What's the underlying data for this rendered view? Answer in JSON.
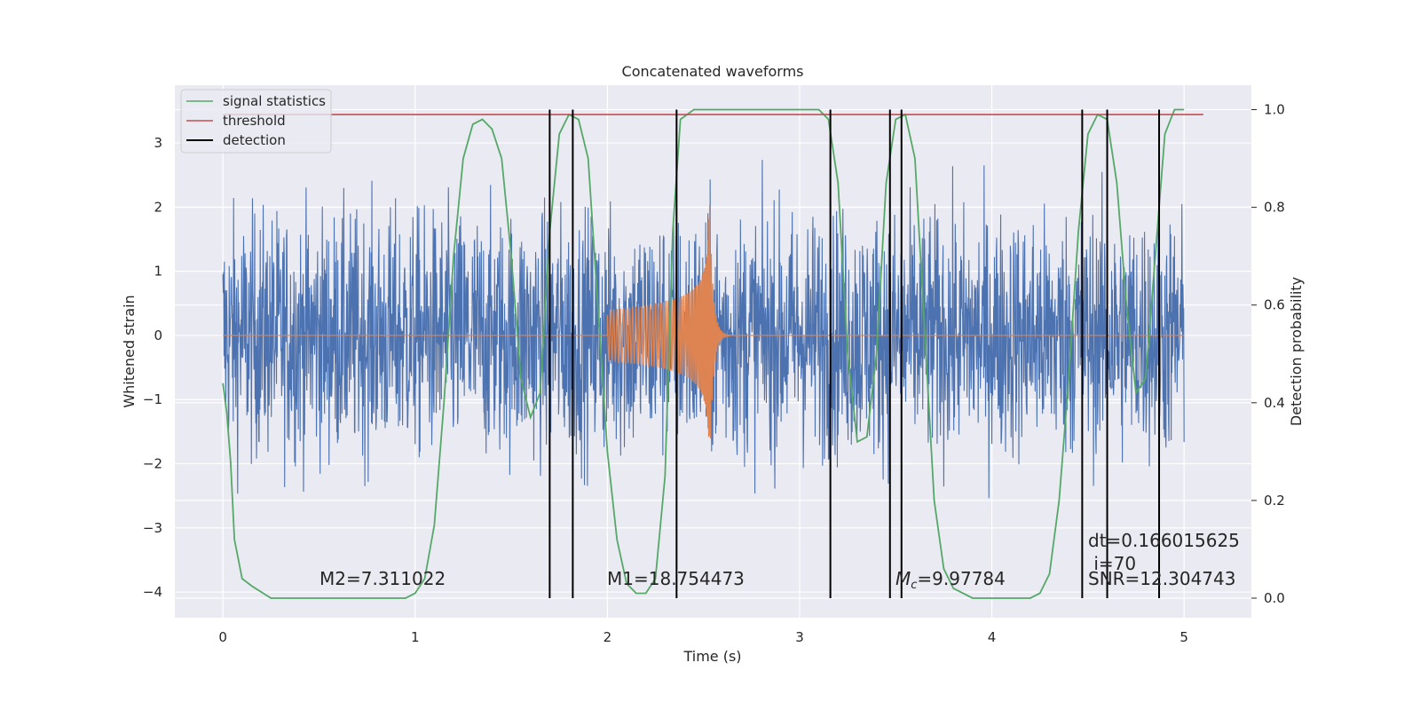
{
  "chart_data": {
    "type": "line",
    "title": "Concatenated waveforms",
    "xlabel": "Time (s)",
    "ylabel": "Whitened strain",
    "y2label": "Detection probability",
    "xlim": [
      -0.25,
      5.35
    ],
    "ylim": [
      -4.4,
      3.9
    ],
    "y2lim": [
      -0.04,
      1.05
    ],
    "xticks": [
      0,
      1,
      2,
      3,
      4,
      5
    ],
    "yticks": [
      -4,
      -3,
      -2,
      -1,
      0,
      1,
      2,
      3
    ],
    "y2ticks": [
      0.0,
      0.2,
      0.4,
      0.6,
      0.8,
      1.0
    ],
    "grid": true,
    "legend_position": "top-left",
    "colors": {
      "noise": "#4c72b0",
      "template": "#dd8452",
      "signal_statistics": "#55a868",
      "threshold": "#c44e52",
      "detection": "#000000",
      "axes_bg": "#eaeaf2",
      "grid": "#ffffff"
    },
    "series": [
      {
        "name": "signal statistics",
        "axis": "right",
        "x": [
          0.0,
          0.02,
          0.04,
          0.06,
          0.1,
          0.15,
          0.25,
          0.5,
          0.8,
          0.95,
          1.0,
          1.05,
          1.1,
          1.15,
          1.2,
          1.25,
          1.3,
          1.35,
          1.4,
          1.45,
          1.5,
          1.55,
          1.6,
          1.65,
          1.7,
          1.75,
          1.8,
          1.85,
          1.9,
          1.95,
          2.0,
          2.05,
          2.1,
          2.15,
          2.2,
          2.25,
          2.3,
          2.34,
          2.38,
          2.45,
          3.1,
          3.15,
          3.2,
          3.25,
          3.3,
          3.35,
          3.4,
          3.45,
          3.5,
          3.55,
          3.6,
          3.65,
          3.7,
          3.75,
          3.8,
          3.85,
          3.9,
          3.95,
          4.2,
          4.25,
          4.3,
          4.35,
          4.4,
          4.45,
          4.5,
          4.55,
          4.6,
          4.65,
          4.7,
          4.75,
          4.8,
          4.85,
          4.9,
          4.95,
          5.0
        ],
        "values": [
          0.44,
          0.38,
          0.28,
          0.12,
          0.04,
          0.025,
          0.0,
          0.0,
          0.0,
          0.0,
          0.01,
          0.04,
          0.15,
          0.4,
          0.7,
          0.9,
          0.97,
          0.98,
          0.96,
          0.9,
          0.7,
          0.45,
          0.37,
          0.42,
          0.75,
          0.95,
          0.99,
          0.98,
          0.9,
          0.6,
          0.3,
          0.12,
          0.03,
          0.01,
          0.01,
          0.04,
          0.25,
          0.75,
          0.98,
          1.0,
          1.0,
          0.98,
          0.85,
          0.5,
          0.32,
          0.33,
          0.5,
          0.85,
          0.98,
          0.99,
          0.9,
          0.55,
          0.2,
          0.06,
          0.02,
          0.01,
          0.0,
          0.0,
          0.0,
          0.01,
          0.05,
          0.2,
          0.45,
          0.75,
          0.95,
          0.99,
          0.98,
          0.85,
          0.6,
          0.42,
          0.45,
          0.7,
          0.95,
          1.0,
          1.0
        ]
      },
      {
        "name": "threshold",
        "axis": "right",
        "x": [
          0.0,
          5.1
        ],
        "values": [
          0.99,
          0.99
        ]
      },
      {
        "name": "detection",
        "axis": "right",
        "x": [
          1.7,
          1.82,
          2.36,
          3.16,
          3.47,
          3.53,
          4.47,
          4.6,
          4.87
        ]
      }
    ],
    "annotations": [
      {
        "text": "M2=7.311022"
      },
      {
        "text": "M1=18.754473"
      },
      {
        "text": "=9.97784",
        "prefix": "M",
        "subscript": "c"
      },
      {
        "text": "dt=0.166015625"
      },
      {
        "text": " i=70"
      },
      {
        "text": "SNR=12.304743"
      }
    ]
  }
}
